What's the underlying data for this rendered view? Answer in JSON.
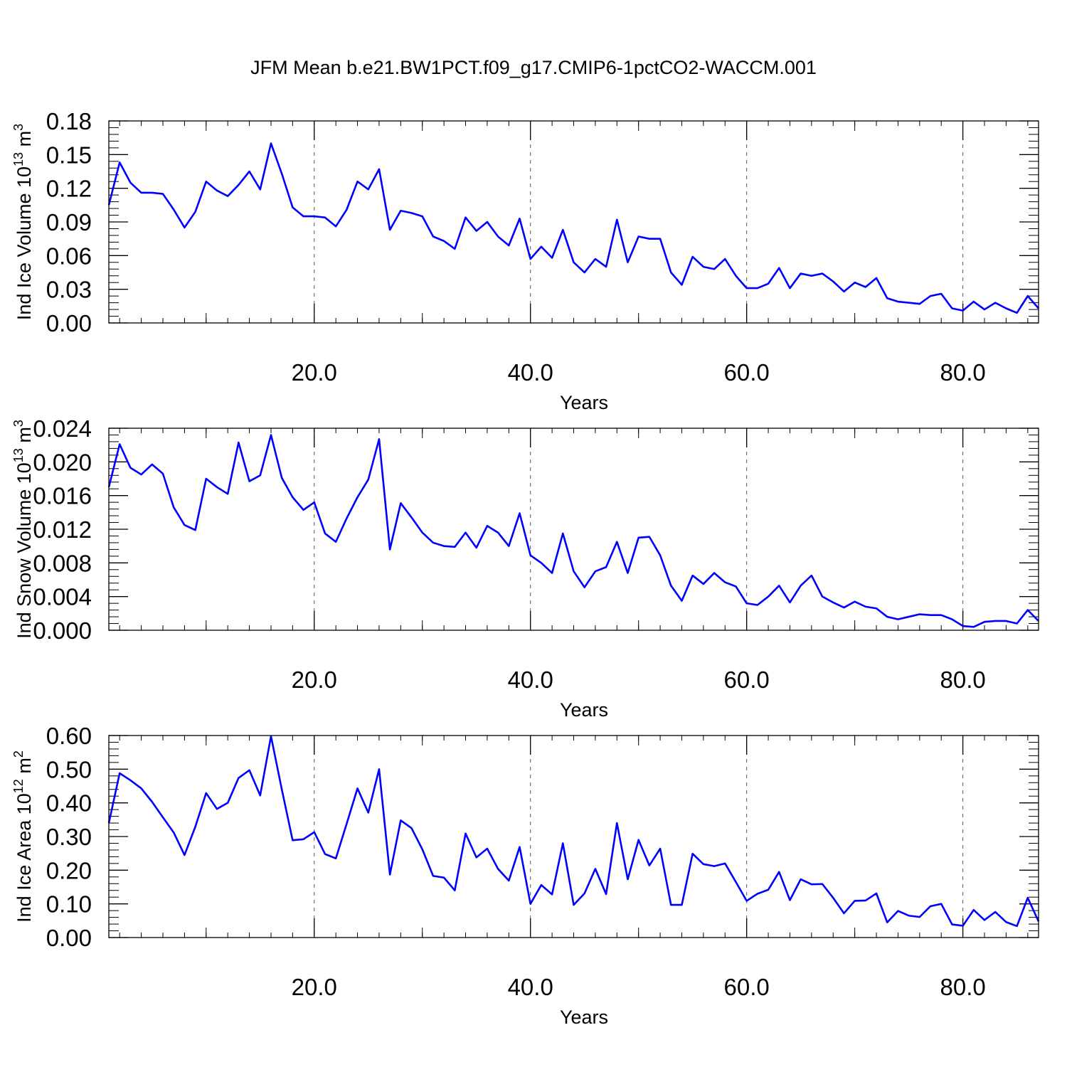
{
  "title": "JFM Mean b.e21.BW1PCT.f09_g17.CMIP6-1pctCO2-WACCM.001",
  "line_color": "#0000ff",
  "chart_data": [
    {
      "type": "line",
      "ylabel": "Ind Ice Volume 10",
      "ylabel_exp": "13",
      "ylabel_unit": " m",
      "ylabel_unit_exp": "3",
      "xlabel": "Years",
      "xlim": [
        1,
        87
      ],
      "ylim": [
        0,
        0.18
      ],
      "xticks": [
        20,
        40,
        60,
        80
      ],
      "xtick_labels": [
        "20.0",
        "40.0",
        "60.0",
        "80.0"
      ],
      "yticks": [
        0,
        0.03,
        0.06,
        0.09,
        0.12,
        0.15,
        0.18
      ],
      "ytick_labels": [
        "0.00",
        "0.03",
        "0.06",
        "0.09",
        "0.12",
        "0.15",
        "0.18"
      ],
      "grid": "vertical dashed",
      "series": [
        {
          "values": [
            0.105,
            0.143,
            0.125,
            0.116,
            0.116,
            0.115,
            0.101,
            0.085,
            0.099,
            0.126,
            0.118,
            0.113,
            0.123,
            0.135,
            0.119,
            0.16,
            0.133,
            0.103,
            0.095,
            0.095,
            0.094,
            0.086,
            0.101,
            0.126,
            0.119,
            0.137,
            0.083,
            0.1,
            0.098,
            0.095,
            0.077,
            0.073,
            0.066,
            0.094,
            0.082,
            0.09,
            0.077,
            0.069,
            0.093,
            0.057,
            0.068,
            0.058,
            0.083,
            0.054,
            0.045,
            0.057,
            0.05,
            0.092,
            0.054,
            0.077,
            0.075,
            0.075,
            0.045,
            0.034,
            0.059,
            0.05,
            0.048,
            0.057,
            0.042,
            0.031,
            0.031,
            0.035,
            0.049,
            0.031,
            0.044,
            0.042,
            0.044,
            0.037,
            0.028,
            0.036,
            0.032,
            0.04,
            0.022,
            0.019,
            0.018,
            0.017,
            0.024,
            0.026,
            0.013,
            0.011,
            0.019,
            0.012,
            0.018,
            0.013,
            0.009,
            0.024,
            0.013
          ]
        }
      ]
    },
    {
      "type": "line",
      "ylabel": "Ind Snow Volume 10",
      "ylabel_exp": "13",
      "ylabel_unit": " m",
      "ylabel_unit_exp": "3",
      "xlabel": "Years",
      "xlim": [
        1,
        87
      ],
      "ylim": [
        0,
        0.024
      ],
      "xticks": [
        20,
        40,
        60,
        80
      ],
      "xtick_labels": [
        "20.0",
        "40.0",
        "60.0",
        "80.0"
      ],
      "yticks": [
        0,
        0.004,
        0.008,
        0.012,
        0.016,
        0.02,
        0.024
      ],
      "ytick_labels": [
        "0.000",
        "0.004",
        "0.008",
        "0.012",
        "0.016",
        "0.020",
        "0.024"
      ],
      "grid": "vertical dashed",
      "series": [
        {
          "values": [
            0.017,
            0.0221,
            0.0193,
            0.0185,
            0.0197,
            0.0186,
            0.0146,
            0.0125,
            0.0119,
            0.018,
            0.017,
            0.0162,
            0.0223,
            0.0177,
            0.0184,
            0.0232,
            0.0181,
            0.0158,
            0.0143,
            0.0152,
            0.0115,
            0.0105,
            0.0133,
            0.0158,
            0.0179,
            0.0227,
            0.0096,
            0.0151,
            0.0134,
            0.0116,
            0.0104,
            0.01,
            0.0099,
            0.0116,
            0.0098,
            0.0124,
            0.0116,
            0.01,
            0.0139,
            0.0089,
            0.008,
            0.0068,
            0.0115,
            0.007,
            0.0051,
            0.007,
            0.0075,
            0.0105,
            0.0068,
            0.011,
            0.0111,
            0.0089,
            0.0053,
            0.0035,
            0.0065,
            0.0055,
            0.0068,
            0.0057,
            0.0052,
            0.0032,
            0.003,
            0.004,
            0.0053,
            0.0033,
            0.0053,
            0.0065,
            0.004,
            0.0033,
            0.0027,
            0.0034,
            0.0028,
            0.0026,
            0.0016,
            0.0013,
            0.0016,
            0.0019,
            0.0018,
            0.0018,
            0.0013,
            0.0005,
            0.0004,
            0.001,
            0.0011,
            0.0011,
            0.0008,
            0.0024,
            0.0011
          ]
        }
      ]
    },
    {
      "type": "line",
      "ylabel": "Ind Ice Area 10",
      "ylabel_exp": "12",
      "ylabel_unit": " m",
      "ylabel_unit_exp": "2",
      "xlabel": "Years",
      "xlim": [
        1,
        87
      ],
      "ylim": [
        0,
        0.6
      ],
      "xticks": [
        20,
        40,
        60,
        80
      ],
      "xtick_labels": [
        "20.0",
        "40.0",
        "60.0",
        "80.0"
      ],
      "yticks": [
        0,
        0.1,
        0.2,
        0.3,
        0.4,
        0.5,
        0.6
      ],
      "ytick_labels": [
        "0.00",
        "0.10",
        "0.20",
        "0.30",
        "0.40",
        "0.50",
        "0.60"
      ],
      "grid": "vertical dashed",
      "series": [
        {
          "values": [
            0.34,
            0.488,
            0.467,
            0.443,
            0.403,
            0.357,
            0.312,
            0.245,
            0.329,
            0.429,
            0.382,
            0.4,
            0.474,
            0.497,
            0.422,
            0.598,
            0.44,
            0.289,
            0.292,
            0.313,
            0.248,
            0.235,
            0.338,
            0.443,
            0.371,
            0.5,
            0.187,
            0.348,
            0.325,
            0.262,
            0.183,
            0.178,
            0.14,
            0.309,
            0.238,
            0.264,
            0.204,
            0.169,
            0.269,
            0.1,
            0.156,
            0.128,
            0.28,
            0.097,
            0.131,
            0.204,
            0.129,
            0.34,
            0.173,
            0.29,
            0.214,
            0.264,
            0.097,
            0.097,
            0.249,
            0.218,
            0.212,
            0.22,
            0.165,
            0.109,
            0.13,
            0.142,
            0.195,
            0.111,
            0.173,
            0.158,
            0.159,
            0.118,
            0.072,
            0.109,
            0.11,
            0.131,
            0.045,
            0.079,
            0.065,
            0.061,
            0.093,
            0.1,
            0.039,
            0.035,
            0.082,
            0.052,
            0.076,
            0.046,
            0.034,
            0.118,
            0.048
          ]
        }
      ]
    }
  ]
}
